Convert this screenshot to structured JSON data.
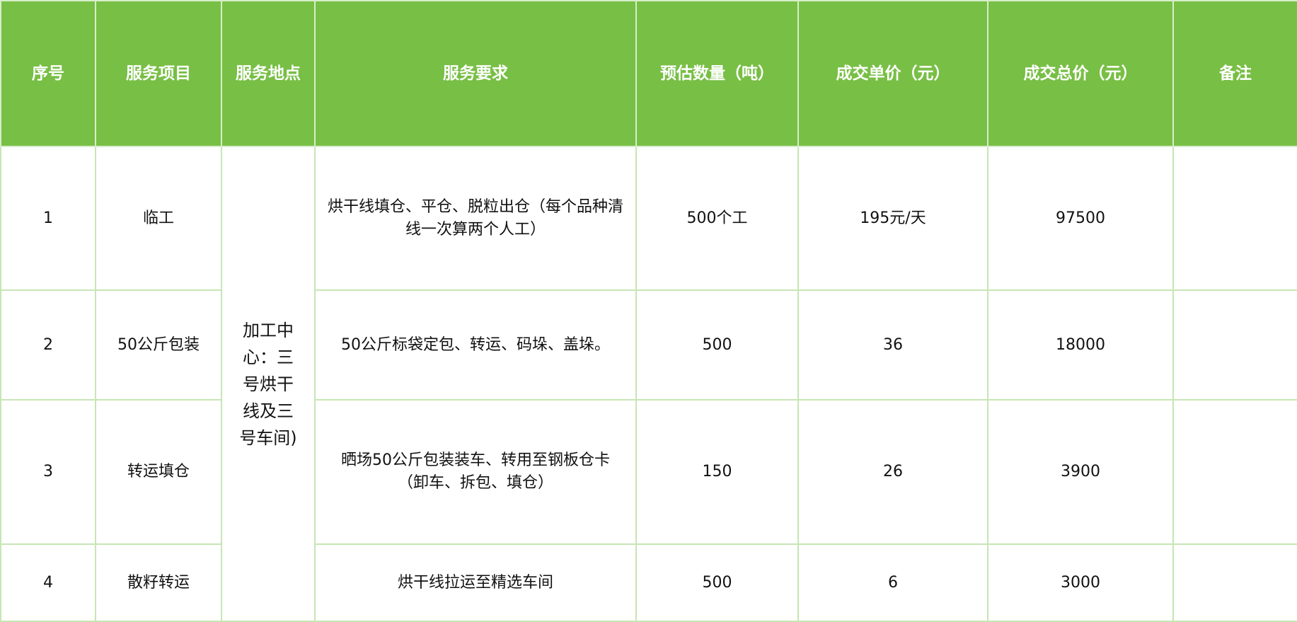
{
  "headers": [
    "序号",
    "服务项目",
    "服务地点",
    "服务要求",
    "预估数量（吨）",
    "成交单价（元）",
    "成交总价（元）",
    "备注"
  ],
  "location": "加工中心：三号烘干线及三号车间)",
  "rows": [
    {
      "no": "1",
      "item": "临工",
      "requirement": "烘干线填仓、平仓、脱粒出仓（每个品种清线一次算两个人工）",
      "quantity": "500个工",
      "unit_price": "195元/天",
      "total": "97500",
      "remark": ""
    },
    {
      "no": "2",
      "item": "50公斤包装",
      "requirement": "50公斤标袋定包、转运、码垛、盖垛。",
      "quantity": "500",
      "unit_price": "36",
      "total": "18000",
      "remark": ""
    },
    {
      "no": "3",
      "item": "转运填仓",
      "requirement": "晒场50公斤包装装车、转用至钢板仓卡（卸车、拆包、填仓）",
      "quantity": "150",
      "unit_price": "26",
      "total": "3900",
      "remark": ""
    },
    {
      "no": "4",
      "item": "散籽转运",
      "requirement": "烘干线拉运至精选车间",
      "quantity": "500",
      "unit_price": "6",
      "total": "3000",
      "remark": ""
    }
  ],
  "colors": {
    "header_bg": "#78bf45",
    "border": "#c6e6b4"
  }
}
